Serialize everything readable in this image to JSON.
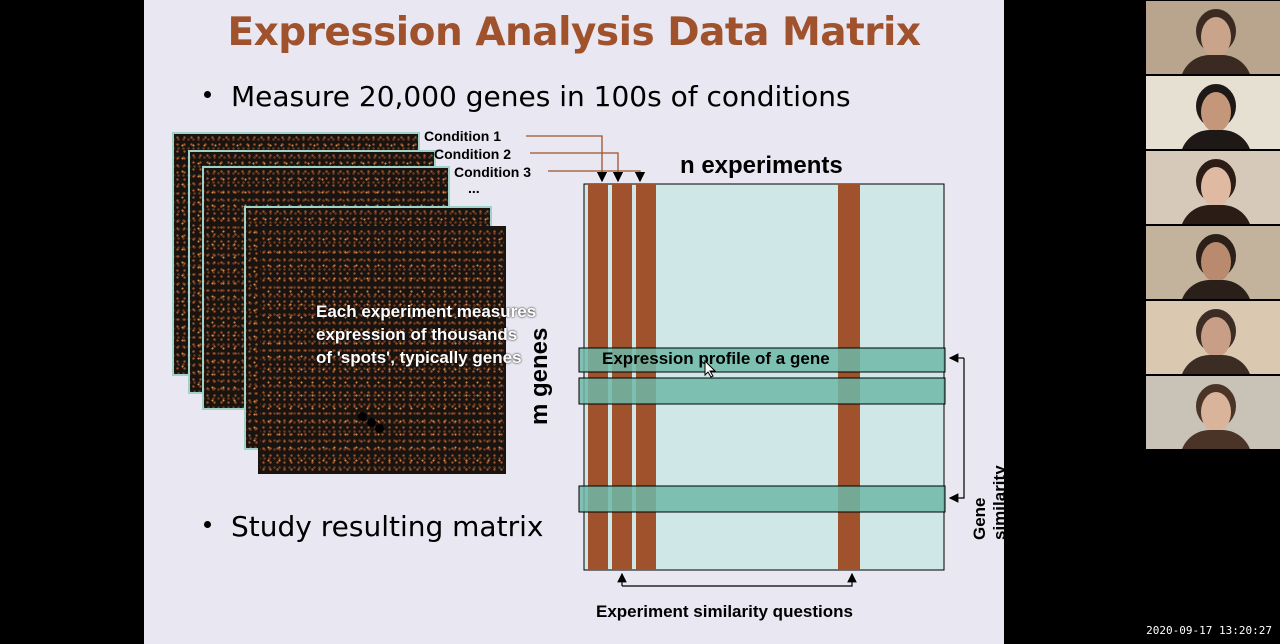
{
  "slide": {
    "title": "Expression Analysis Data Matrix",
    "bullet1": "Measure 20,000 genes in 100s of conditions",
    "bullet2": "Study resulting matrix",
    "condition1": "Condition 1",
    "condition2": "Condition 2",
    "condition3": "Condition 3",
    "ellipsis": "...",
    "stack_label_line1": "Each experiment measures",
    "stack_label_line2": "expression of thousands",
    "stack_label_line3": "of 'spots', typically genes",
    "n_experiments": "n experiments",
    "m_genes": "m genes",
    "profile_label": "Expression profile of a gene",
    "gene_similarity": "Gene similarity questions",
    "experiment_similarity": "Experiment similarity questions"
  },
  "colors": {
    "title": "#a0522d",
    "column_fill": "#a0522d",
    "row_fill": "#6fb9a8",
    "matrix_bg": "#cfe7e6"
  },
  "participants": [
    {
      "name": "participant-1",
      "bg": "#b9a58e",
      "skin": "#c9a48a",
      "hair": "#3a2a22"
    },
    {
      "name": "participant-2",
      "bg": "#e6e0d2",
      "skin": "#c4967a",
      "hair": "#1e1816"
    },
    {
      "name": "participant-3",
      "bg": "#d7c9b9",
      "skin": "#e0b9a2",
      "hair": "#2b1d16"
    },
    {
      "name": "participant-4",
      "bg": "#c4b39c",
      "skin": "#b98a6d",
      "hair": "#2a1f19"
    },
    {
      "name": "participant-5",
      "bg": "#dac9b0",
      "skin": "#c89f86",
      "hair": "#3c2d24"
    },
    {
      "name": "participant-6",
      "bg": "#c9c2b6",
      "skin": "#d9b39a",
      "hair": "#4a3427"
    }
  ],
  "timestamp": "2020-09-17  13:20:27"
}
